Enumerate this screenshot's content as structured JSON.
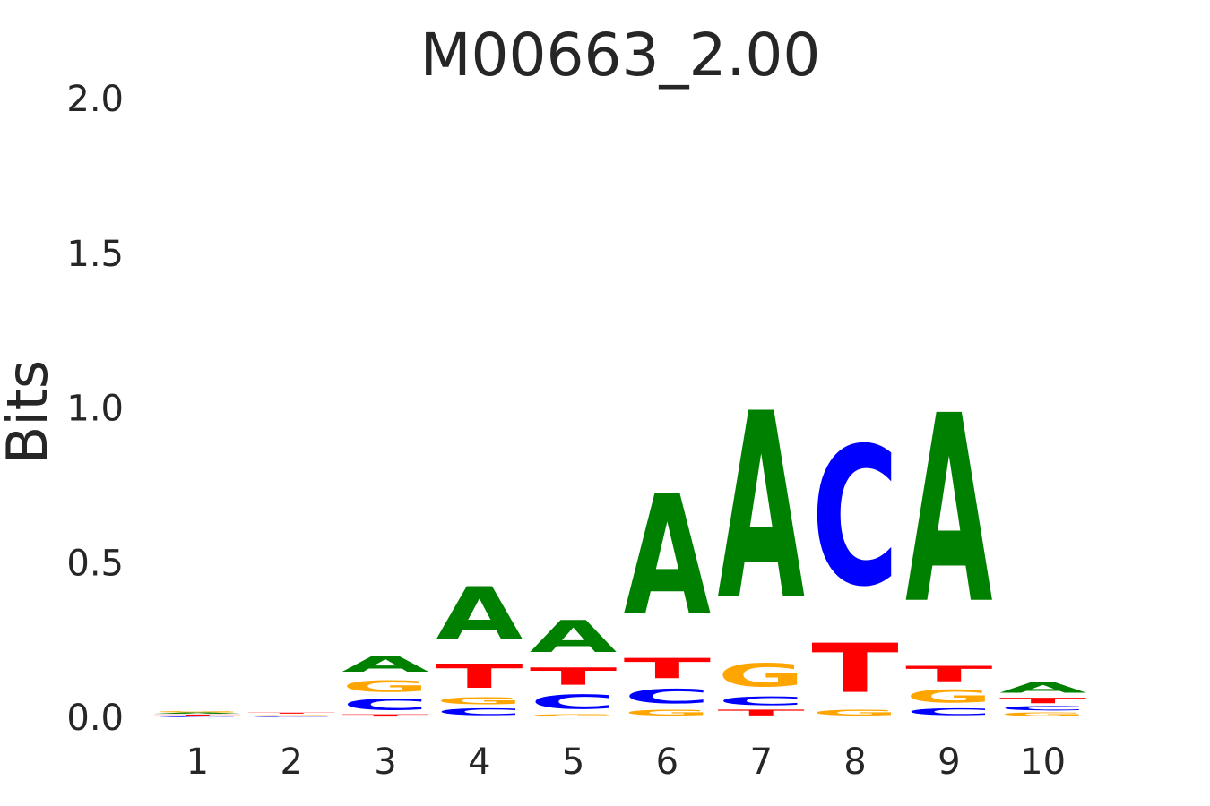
{
  "chart_data": {
    "type": "sequence-logo",
    "title": "M00663_2.00",
    "ylabel": "Bits",
    "xlabel": "",
    "ylim": [
      0,
      2
    ],
    "yticks": [
      "0.0",
      "0.5",
      "1.0",
      "1.5",
      "2.0"
    ],
    "ytick_values": [
      0,
      0.5,
      1,
      1.5,
      2
    ],
    "positions": [
      "1",
      "2",
      "3",
      "4",
      "5",
      "6",
      "7",
      "8",
      "9",
      "10"
    ],
    "colors": {
      "A": "#008000",
      "C": "#0000ff",
      "G": "#ffa500",
      "T": "#ff0000"
    },
    "stacks": [
      [
        {
          "base": "C",
          "bits": 0.004
        },
        {
          "base": "T",
          "bits": 0.006
        },
        {
          "base": "A",
          "bits": 0.005
        },
        {
          "base": "G",
          "bits": 0.007
        }
      ],
      [
        {
          "base": "C",
          "bits": 0.003
        },
        {
          "base": "A",
          "bits": 0.004
        },
        {
          "base": "G",
          "bits": 0.004
        },
        {
          "base": "T",
          "bits": 0.005
        }
      ],
      [
        {
          "base": "T",
          "bits": 0.012
        },
        {
          "base": "C",
          "bits": 0.058
        },
        {
          "base": "G",
          "bits": 0.06
        },
        {
          "base": "A",
          "bits": 0.085
        }
      ],
      [
        {
          "base": "C",
          "bits": 0.035
        },
        {
          "base": "G",
          "bits": 0.035
        },
        {
          "base": "T",
          "bits": 0.125
        },
        {
          "base": "A",
          "bits": 0.275
        }
      ],
      [
        {
          "base": "G",
          "bits": 0.012
        },
        {
          "base": "C",
          "bits": 0.075
        },
        {
          "base": "T",
          "bits": 0.09
        },
        {
          "base": "A",
          "bits": 0.165
        }
      ],
      [
        {
          "base": "G",
          "bits": 0.03
        },
        {
          "base": "C",
          "bits": 0.075
        },
        {
          "base": "T",
          "bits": 0.105
        },
        {
          "base": "A",
          "bits": 0.62
        }
      ],
      [
        {
          "base": "T",
          "bits": 0.03
        },
        {
          "base": "C",
          "bits": 0.045
        },
        {
          "base": "G",
          "bits": 0.12
        },
        {
          "base": "A",
          "bits": 0.965
        }
      ],
      [
        {
          "base": "G",
          "bits": 0.03
        },
        {
          "base": "T",
          "bits": 0.255
        },
        {
          "base": "C",
          "bits": 0.72
        }
      ],
      [
        {
          "base": "C",
          "bits": 0.035
        },
        {
          "base": "G",
          "bits": 0.065
        },
        {
          "base": "T",
          "bits": 0.08
        },
        {
          "base": "A",
          "bits": 0.975
        }
      ],
      [
        {
          "base": "G",
          "bits": 0.018
        },
        {
          "base": "C",
          "bits": 0.022
        },
        {
          "base": "T",
          "bits": 0.028
        },
        {
          "base": "A",
          "bits": 0.055
        }
      ]
    ]
  }
}
